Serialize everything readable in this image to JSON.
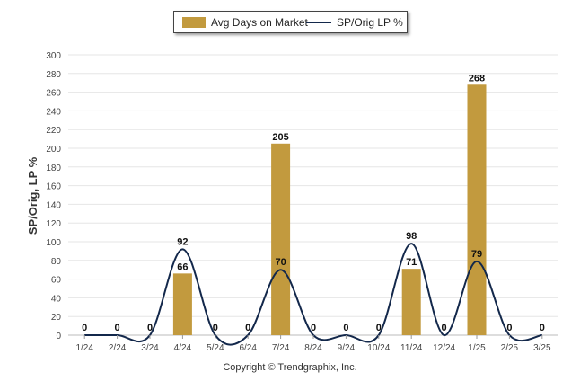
{
  "legend": {
    "bar_label": "Avg Days on Market",
    "line_label": "SP/Orig LP %"
  },
  "footer": {
    "copyright": "Copyright © Trendgraphix, Inc."
  },
  "colors": {
    "bar": "#c29a3e",
    "line": "#13284b",
    "grid": "#e6e6e6"
  },
  "chart_data": {
    "type": "bar",
    "categories": [
      "1/24",
      "2/24",
      "3/24",
      "4/24",
      "5/24",
      "6/24",
      "7/24",
      "8/24",
      "9/24",
      "10/24",
      "11/24",
      "12/24",
      "1/25",
      "2/25",
      "3/25"
    ],
    "ylabel": "SP/Orig, LP %",
    "ylim": [
      0,
      300
    ],
    "yticks": [
      0,
      20,
      40,
      60,
      80,
      100,
      120,
      140,
      160,
      180,
      200,
      220,
      240,
      260,
      280,
      300
    ],
    "grid": true,
    "legend_position": "top-center",
    "series": [
      {
        "name": "Avg Days on Market",
        "type": "bar",
        "values": [
          0,
          0,
          0,
          66,
          0,
          0,
          205,
          0,
          0,
          0,
          71,
          0,
          268,
          0,
          0
        ]
      },
      {
        "name": "SP/Orig LP %",
        "type": "line",
        "values": [
          0,
          0,
          0,
          92,
          0,
          0,
          70,
          0,
          0,
          0,
          98,
          0,
          79,
          0,
          0
        ]
      }
    ],
    "bar_labels": [
      "",
      "",
      "",
      "66",
      "",
      "",
      "205",
      "",
      "",
      "",
      "71",
      "",
      "268",
      "",
      ""
    ],
    "line_labels": [
      "0",
      "0",
      "0",
      "92",
      "0",
      "0",
      "70",
      "0",
      "0",
      "0",
      "98",
      "0",
      "79",
      "0",
      "0"
    ]
  }
}
